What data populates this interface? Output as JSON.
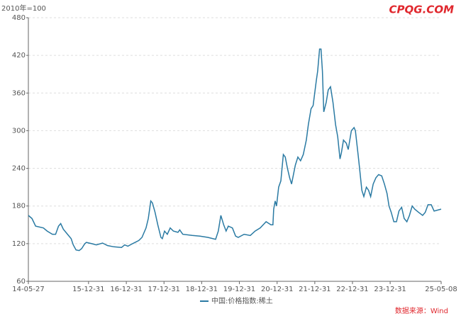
{
  "chart_data": {
    "type": "line",
    "unit_label": "2010年=100",
    "watermark": "CPQG.COM",
    "source": "数据来源：Wind",
    "x": [
      "14-05-27",
      "14-07-01",
      "14-08-05",
      "14-10-20",
      "14-11-25",
      "15-01-15",
      "15-02-15",
      "15-03-15",
      "15-04-05",
      "15-05-01",
      "15-06-10",
      "15-07-15",
      "15-08-05",
      "15-09-01",
      "15-10-01",
      "15-10-25",
      "15-11-25",
      "15-12-10",
      "16-02-01",
      "16-03-15",
      "16-05-15",
      "16-07-01",
      "16-09-01",
      "16-11-15",
      "16-12-15",
      "17-01-15",
      "17-03-01",
      "17-05-01",
      "17-06-01",
      "17-07-10",
      "17-08-01",
      "17-08-25",
      "17-09-10",
      "17-10-05",
      "17-11-01",
      "17-12-01",
      "17-12-15",
      "18-01-05",
      "18-02-01",
      "18-03-01",
      "18-04-01",
      "18-05-15",
      "18-06-01",
      "18-07-01",
      "18-10-01",
      "18-12-15",
      "19-03-01",
      "19-05-15",
      "19-06-10",
      "19-07-05",
      "19-08-01",
      "19-08-25",
      "19-09-15",
      "19-10-25",
      "19-11-25",
      "19-12-20",
      "20-02-15",
      "20-04-15",
      "20-06-01",
      "20-07-20",
      "20-09-15",
      "20-11-01",
      "20-11-20",
      "20-11-28",
      "20-12-12",
      "20-12-25",
      "21-01-15",
      "21-02-05",
      "21-03-01",
      "21-03-20",
      "21-04-10",
      "21-05-01",
      "21-05-20",
      "21-06-25",
      "21-07-20",
      "21-08-15",
      "21-09-10",
      "21-10-10",
      "21-10-30",
      "21-11-25",
      "21-12-15",
      "22-01-15",
      "22-01-28",
      "22-02-15",
      "22-03-01",
      "22-03-15",
      "22-03-28",
      "22-04-20",
      "22-05-10",
      "22-06-01",
      "22-06-25",
      "22-07-20",
      "22-08-10",
      "22-09-01",
      "22-09-15",
      "22-10-05",
      "22-11-01",
      "22-11-20",
      "22-12-20",
      "23-01-15",
      "23-01-28",
      "23-02-25",
      "23-03-10",
      "23-04-01",
      "23-04-20",
      "23-05-15",
      "23-06-05",
      "23-06-25",
      "23-07-20",
      "23-08-15",
      "23-09-10",
      "23-10-10",
      "23-11-05",
      "23-12-01",
      "23-12-20",
      "24-01-10",
      "24-02-05",
      "24-03-01",
      "24-03-25",
      "24-04-20",
      "24-05-15",
      "24-06-10",
      "24-07-05",
      "24-08-01",
      "24-08-25",
      "24-10-01",
      "24-11-10",
      "24-12-05",
      "25-01-01",
      "25-02-01",
      "25-03-01",
      "25-05-08"
    ],
    "series": [
      {
        "name": "中国:价格指数:稀土",
        "color": "#2a7aa3",
        "values": [
          165,
          160,
          148,
          145,
          140,
          135,
          135,
          148,
          152,
          143,
          135,
          128,
          118,
          110,
          109,
          112,
          120,
          122,
          120,
          118,
          121,
          117,
          115,
          114,
          118,
          116,
          120,
          125,
          130,
          145,
          160,
          188,
          185,
          170,
          150,
          130,
          128,
          140,
          135,
          145,
          140,
          138,
          142,
          135,
          133,
          132,
          130,
          127,
          140,
          165,
          150,
          140,
          148,
          145,
          132,
          130,
          135,
          133,
          140,
          145,
          155,
          150,
          150,
          175,
          188,
          180,
          210,
          220,
          262,
          258,
          240,
          225,
          215,
          245,
          258,
          252,
          262,
          285,
          310,
          335,
          340,
          380,
          395,
          430,
          430,
          395,
          330,
          345,
          365,
          370,
          345,
          310,
          290,
          255,
          265,
          285,
          280,
          270,
          300,
          305,
          300,
          260,
          240,
          205,
          195,
          210,
          205,
          195,
          215,
          225,
          230,
          228,
          215,
          200,
          180,
          170,
          155,
          155,
          172,
          178,
          160,
          155,
          165,
          180,
          175,
          170,
          165,
          170,
          182,
          182,
          172,
          175
        ]
      }
    ],
    "xlim": [
      "14-05-27",
      "25-05-08"
    ],
    "xticks": [
      "14-05-27",
      "15-12-31",
      "16-12-31",
      "17-12-31",
      "18-12-31",
      "19-12-31",
      "20-12-31",
      "21-12-31",
      "22-12-31",
      "23-12-31",
      "25-05-08"
    ],
    "ylim": [
      60,
      480
    ],
    "yticks": [
      60,
      120,
      180,
      240,
      300,
      360,
      420,
      480
    ],
    "grid": true,
    "legend": "bottom"
  }
}
